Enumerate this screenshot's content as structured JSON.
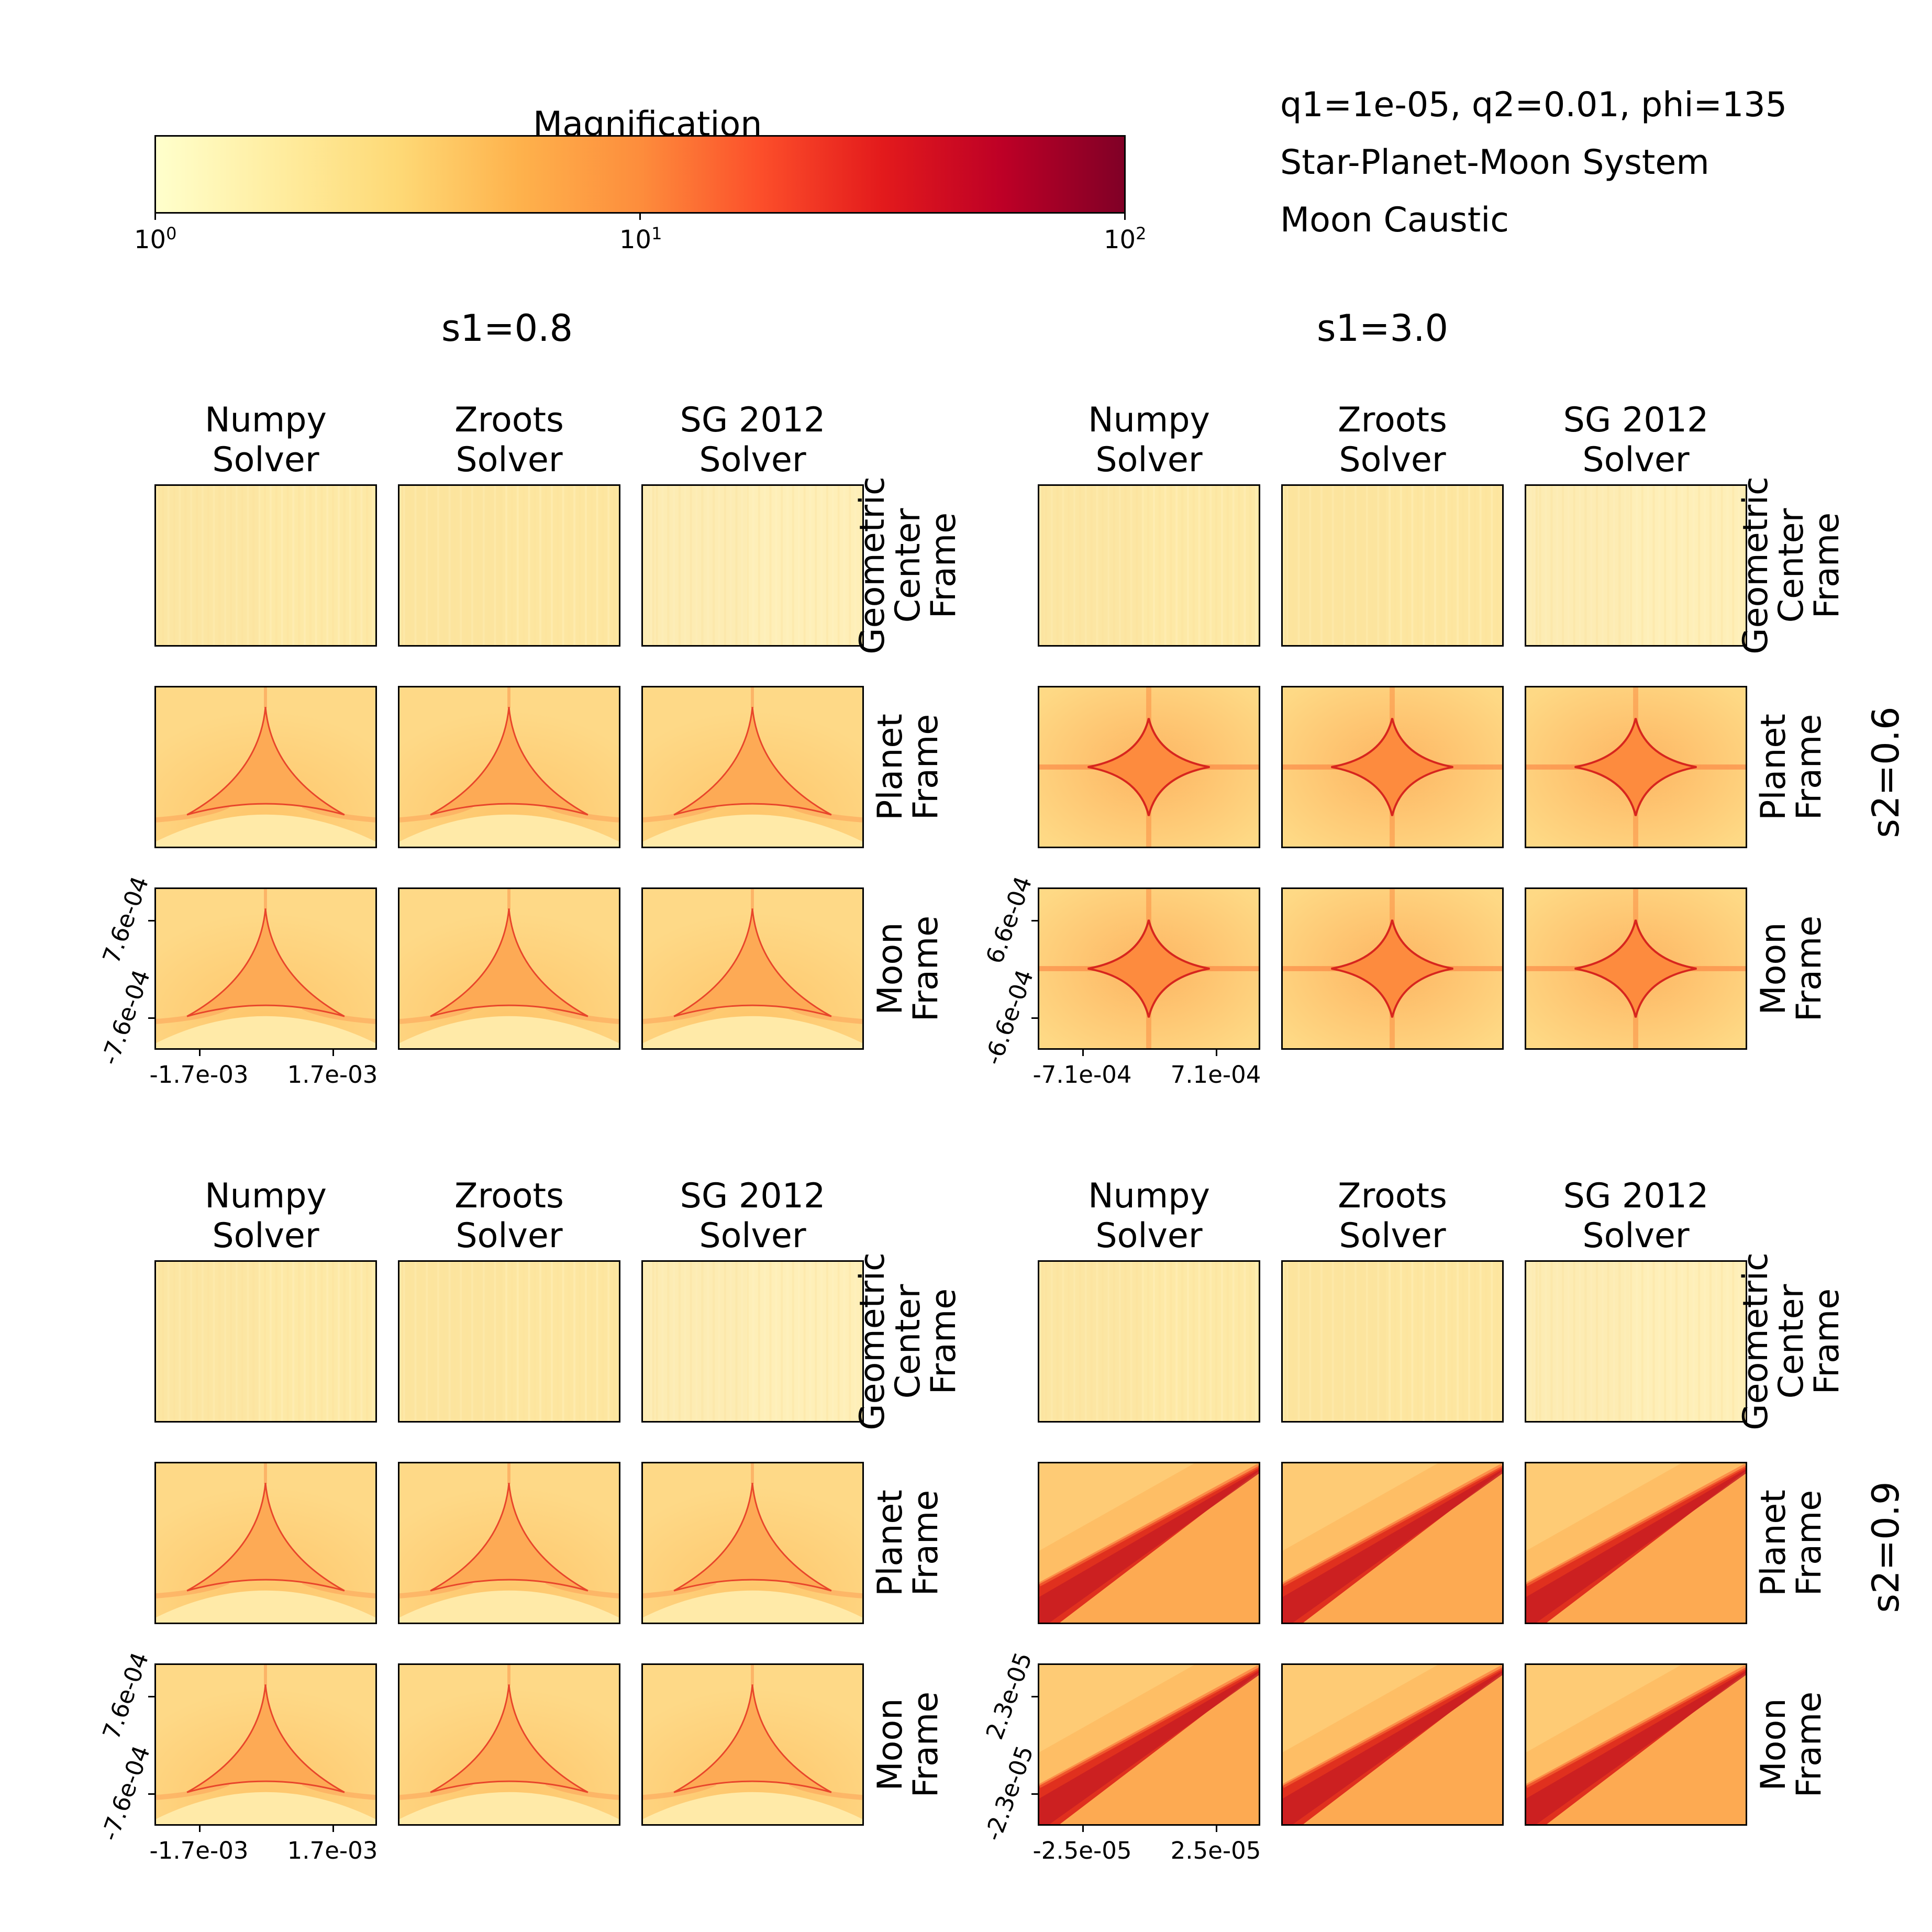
{
  "colorbar": {
    "label": "Magnification",
    "ticks": [
      {
        "base": "10",
        "exp": "0"
      },
      {
        "base": "10",
        "exp": "1"
      },
      {
        "base": "10",
        "exp": "2"
      }
    ],
    "range": [
      1,
      100
    ],
    "scale": "log",
    "colormap": [
      "#ffffcc",
      "#ffeda0",
      "#fed976",
      "#feb24c",
      "#fd8d3c",
      "#fc4e2a",
      "#e31a1c",
      "#bd0026",
      "#800026"
    ]
  },
  "info": {
    "line1": "q1=1e-05, q2=0.01, phi=135",
    "line2": "Star-Planet-Moon System",
    "line3": "Moon Caustic"
  },
  "columns": {
    "s1_a": "s1=0.8",
    "s1_b": "s1=3.0"
  },
  "rows": {
    "s2_a": "s2=0.6",
    "s2_b": "s2=0.9"
  },
  "solvers": [
    {
      "line1": "Numpy",
      "line2": "Solver"
    },
    {
      "line1": "Zroots",
      "line2": "Solver"
    },
    {
      "line1": "SG 2012",
      "line2": "Solver"
    }
  ],
  "frames": {
    "geometric": {
      "line1": "Geometric",
      "line2": "Center",
      "line3": "Frame"
    },
    "planet": {
      "line1": "Planet",
      "line2": "Frame"
    },
    "moon": {
      "line1": "Moon",
      "line2": "Frame"
    }
  },
  "chart_data": {
    "type": "heatmap",
    "value_label": "Magnification",
    "color_scale": "log",
    "color_range": [
      1,
      100
    ],
    "blocks": [
      {
        "s1": "s1=0.8",
        "s2": "s2=0.6",
        "x_ticks": [
          "-1.7e-03",
          "1.7e-03"
        ],
        "y_ticks": [
          "7.6e-04",
          "-7.6e-04"
        ],
        "caustic_shape": "triangular"
      },
      {
        "s1": "s1=3.0",
        "s2": "s2=0.6",
        "x_ticks": [
          "-7.1e-04",
          "7.1e-04"
        ],
        "y_ticks": [
          "6.6e-04",
          "-6.6e-04"
        ],
        "caustic_shape": "astroid"
      },
      {
        "s1": "s1=0.8",
        "s2": "s2=0.9",
        "x_ticks": [
          "-1.7e-03",
          "1.7e-03"
        ],
        "y_ticks": [
          "7.6e-04",
          "-7.6e-04"
        ],
        "caustic_shape": "triangular"
      },
      {
        "s1": "s1=3.0",
        "s2": "s2=0.9",
        "x_ticks": [
          "-2.5e-05",
          "2.5e-05"
        ],
        "y_ticks": [
          "2.3e-05",
          "-2.3e-05"
        ],
        "caustic_shape": "diagonal fold"
      }
    ]
  }
}
